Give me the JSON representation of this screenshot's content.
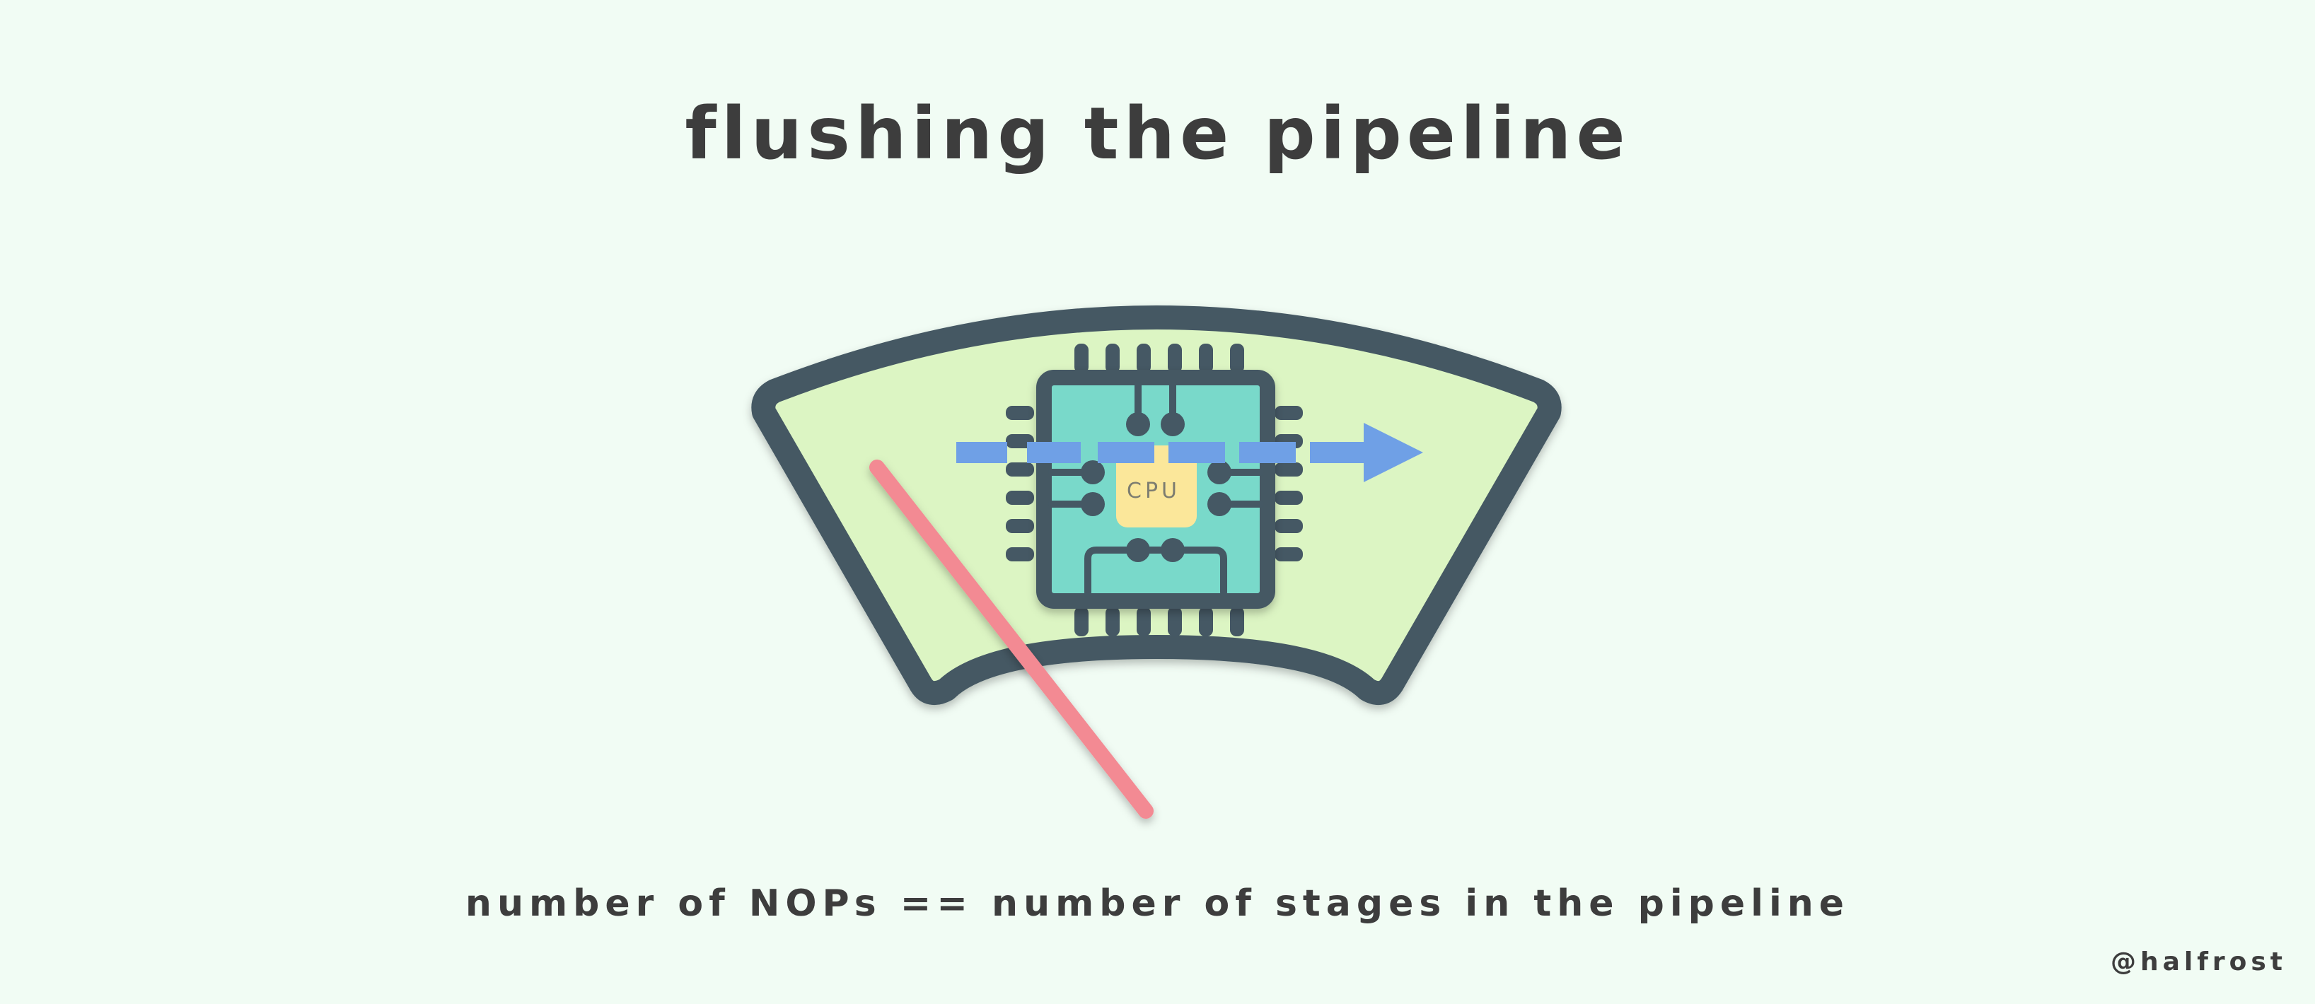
{
  "title": "flushing the pipeline",
  "caption": "number of NOPs == number of stages in the pipeline",
  "credit": "@halfrost",
  "cpu_label": "CPU",
  "icons": [
    "windshield-icon",
    "cpu-chip-icon",
    "pipeline-arrow-icon",
    "wiper-icon"
  ],
  "colors": {
    "background": "#f1fcf4",
    "windshield_fill": "#dcf5c3",
    "outline": "#455864",
    "chip_fill": "#79d9ca",
    "core_fill": "#fbe79a",
    "arrow": "#6fa0e6",
    "wiper": "#f38a93",
    "text": "#3d3d3d"
  }
}
